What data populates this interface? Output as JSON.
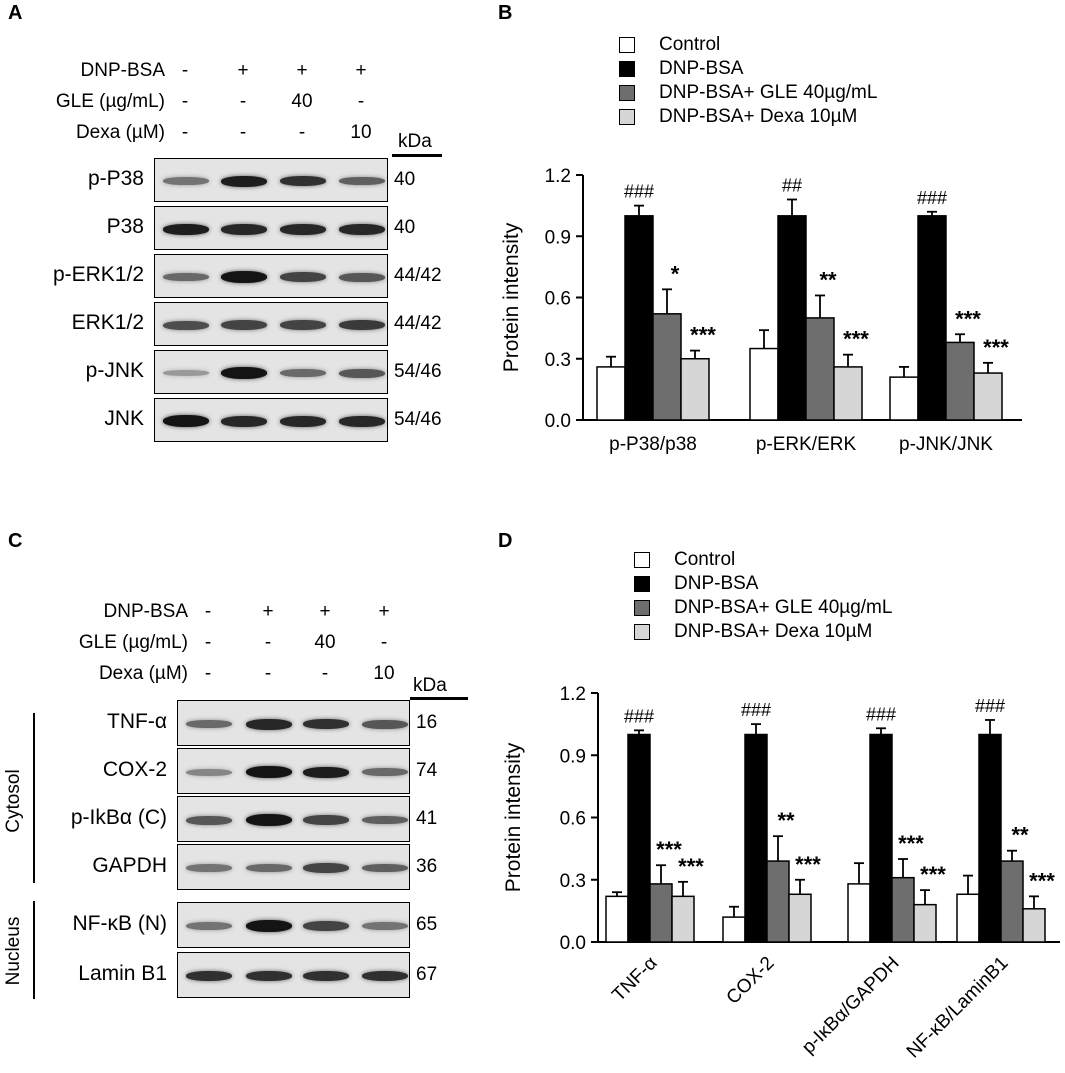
{
  "panels": {
    "A": {
      "label": "A",
      "conditions": [
        {
          "name": "DNP-BSA",
          "values": [
            "-",
            "+",
            "+",
            "+"
          ]
        },
        {
          "name": "GLE (µg/mL)",
          "values": [
            "-",
            "-",
            "40",
            "-"
          ]
        },
        {
          "name": "Dexa (µM)",
          "values": [
            "-",
            "-",
            "-",
            "10"
          ]
        }
      ],
      "kda_header": "kDa",
      "blots": [
        {
          "name": "p-P38",
          "kda": "40",
          "intensity": [
            0.45,
            0.9,
            0.8,
            0.55
          ]
        },
        {
          "name": "P38",
          "kda": "40",
          "intensity": [
            0.9,
            0.85,
            0.85,
            0.85
          ]
        },
        {
          "name": "p-ERK1/2",
          "kda": "44/42",
          "intensity": [
            0.5,
            0.95,
            0.7,
            0.6
          ]
        },
        {
          "name": "ERK1/2",
          "kda": "44/42",
          "intensity": [
            0.65,
            0.7,
            0.7,
            0.75
          ]
        },
        {
          "name": "p-JNK",
          "kda": "54/46",
          "intensity": [
            0.25,
            0.95,
            0.5,
            0.6
          ]
        },
        {
          "name": "JNK",
          "kda": "54/46",
          "intensity": [
            0.95,
            0.85,
            0.85,
            0.85
          ]
        }
      ]
    },
    "C": {
      "label": "C",
      "conditions": [
        {
          "name": "DNP-BSA",
          "values": [
            "-",
            "+",
            "+",
            "+"
          ]
        },
        {
          "name": "GLE (µg/mL)",
          "values": [
            "-",
            "-",
            "40",
            "-"
          ]
        },
        {
          "name": "Dexa (µM)",
          "values": [
            "-",
            "-",
            "-",
            "10"
          ]
        }
      ],
      "kda_header": "kDa",
      "groups": [
        {
          "name": "Cytosol"
        },
        {
          "name": "Nucleus"
        }
      ],
      "blots": [
        {
          "name": "TNF-α",
          "kda": "16",
          "intensity": [
            0.5,
            0.85,
            0.8,
            0.6
          ]
        },
        {
          "name": "COX-2",
          "kda": "74",
          "intensity": [
            0.35,
            0.95,
            0.9,
            0.5
          ]
        },
        {
          "name": "p-IkBα (C)",
          "kda": "41",
          "intensity": [
            0.6,
            0.95,
            0.7,
            0.55
          ]
        },
        {
          "name": "GAPDH",
          "kda": "36",
          "intensity": [
            0.45,
            0.5,
            0.7,
            0.55
          ]
        },
        {
          "name": "NF-κB (N)",
          "kda": "65",
          "intensity": [
            0.45,
            0.95,
            0.7,
            0.45
          ]
        },
        {
          "name": "Lamin B1",
          "kda": "67",
          "intensity": [
            0.8,
            0.8,
            0.8,
            0.8
          ]
        }
      ]
    }
  },
  "chart_data": [
    {
      "panel": "B",
      "type": "bar",
      "ylabel": "Protein intensity",
      "ylim": [
        0,
        1.2
      ],
      "yticks": [
        "0.0",
        "0.3",
        "0.6",
        "0.9",
        "1.2"
      ],
      "categories": [
        "p-P38/p38",
        "p-ERK/ERK",
        "p-JNK/JNK"
      ],
      "series": [
        {
          "name": "Control",
          "color": "#ffffff",
          "values": [
            0.26,
            0.35,
            0.21
          ],
          "errors": [
            0.05,
            0.09,
            0.05
          ],
          "marks": [
            "",
            "",
            ""
          ]
        },
        {
          "name": "DNP-BSA",
          "color": "#000000",
          "values": [
            1.0,
            1.0,
            1.0
          ],
          "errors": [
            0.05,
            0.08,
            0.02
          ],
          "marks": [
            "###",
            "##",
            "###"
          ]
        },
        {
          "name": "DNP-BSA+ GLE 40µg/mL",
          "color": "#6e6e6e",
          "values": [
            0.52,
            0.5,
            0.38
          ],
          "errors": [
            0.12,
            0.11,
            0.04
          ],
          "marks": [
            "*",
            "**",
            "***"
          ]
        },
        {
          "name": "DNP-BSA+ Dexa 10µM",
          "color": "#d6d6d6",
          "values": [
            0.3,
            0.26,
            0.23
          ],
          "errors": [
            0.04,
            0.06,
            0.05
          ],
          "marks": [
            "***",
            "***",
            "***"
          ]
        }
      ]
    },
    {
      "panel": "D",
      "type": "bar",
      "ylabel": "Protein intensity",
      "ylim": [
        0,
        1.2
      ],
      "yticks": [
        "0.0",
        "0.3",
        "0.6",
        "0.9",
        "1.2"
      ],
      "categories": [
        "TNF-α",
        "COX-2",
        "p-IκBα/GAPDH",
        "NF-κB/LaminB1"
      ],
      "series": [
        {
          "name": "Control",
          "color": "#ffffff",
          "values": [
            0.22,
            0.12,
            0.28,
            0.23
          ],
          "errors": [
            0.02,
            0.05,
            0.1,
            0.09
          ],
          "marks": [
            "",
            "",
            "",
            ""
          ]
        },
        {
          "name": "DNP-BSA",
          "color": "#000000",
          "values": [
            1.0,
            1.0,
            1.0,
            1.0
          ],
          "errors": [
            0.02,
            0.05,
            0.03,
            0.07
          ],
          "marks": [
            "###",
            "###",
            "###",
            "###"
          ]
        },
        {
          "name": "DNP-BSA+ GLE 40µg/mL",
          "color": "#6e6e6e",
          "values": [
            0.28,
            0.39,
            0.31,
            0.39
          ],
          "errors": [
            0.09,
            0.12,
            0.09,
            0.05
          ],
          "marks": [
            "***",
            "**",
            "***",
            "**"
          ]
        },
        {
          "name": "DNP-BSA+ Dexa 10µM",
          "color": "#d6d6d6",
          "values": [
            0.22,
            0.23,
            0.18,
            0.16
          ],
          "errors": [
            0.07,
            0.07,
            0.07,
            0.06
          ],
          "marks": [
            "***",
            "***",
            "***",
            "***"
          ]
        }
      ]
    }
  ]
}
